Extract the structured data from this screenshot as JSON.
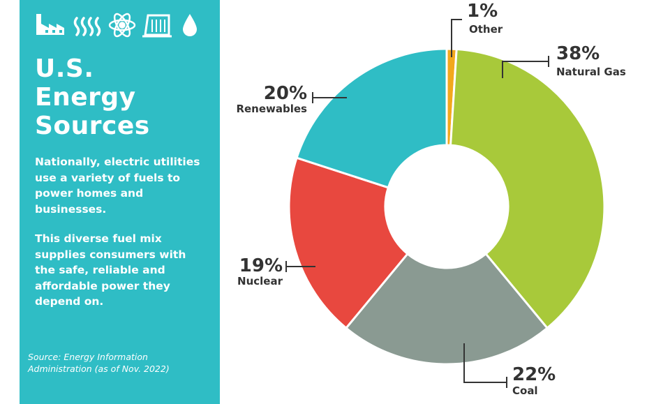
{
  "panel": {
    "icons": [
      "factory-icon",
      "heat-waves-icon",
      "atom-icon",
      "dam-icon",
      "water-drop-icon"
    ],
    "title_lines": [
      "U.S.",
      "Energy",
      "Sources"
    ],
    "paragraph1_lines": [
      "Nationally, electric utilities",
      "use a variety of fuels to",
      "power homes and",
      "businesses."
    ],
    "paragraph2_lines": [
      "This diverse fuel mix",
      "supplies consumers with",
      "the safe, reliable and",
      "affordable power they",
      "depend on."
    ],
    "source_lines": [
      "Source: Energy Information",
      "Administration (as of Nov. 2022)"
    ],
    "background_color": "#2fbdc5"
  },
  "chart_data": {
    "type": "pie",
    "variant": "donut",
    "slices": [
      {
        "label": "Other",
        "value": 1,
        "value_label": "1%",
        "color": "#f2a81d"
      },
      {
        "label": "Natural Gas",
        "value": 38,
        "value_label": "38%",
        "color": "#a8c93a"
      },
      {
        "label": "Coal",
        "value": 22,
        "value_label": "22%",
        "color": "#8a9a92"
      },
      {
        "label": "Nuclear",
        "value": 19,
        "value_label": "19%",
        "color": "#e8483f"
      },
      {
        "label": "Renewables",
        "value": 20,
        "value_label": "20%",
        "color": "#2fbdc5"
      }
    ]
  }
}
